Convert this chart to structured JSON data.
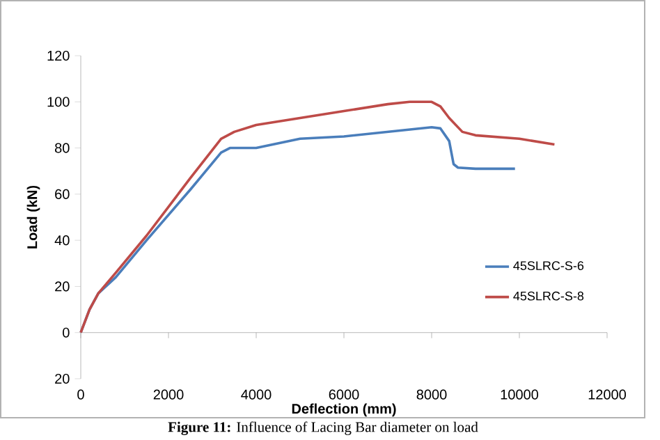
{
  "chart_data": {
    "type": "line",
    "xlabel": "Deflection (mm)",
    "ylabel": "Load (kN)",
    "annotations": [
      "**Figure 11:** Influence of Lacing Bar diameter on load"
    ],
    "xlim": [
      0,
      12000
    ],
    "xticks": [
      0,
      2000,
      4000,
      6000,
      8000,
      10000,
      12000
    ],
    "ylim": [
      -20,
      120
    ],
    "yticks": [
      {
        "value": -20,
        "label": "20"
      },
      0,
      20,
      40,
      60,
      80,
      100,
      120
    ],
    "legend": "right",
    "series": [
      {
        "name": "45SLRC-S-6",
        "color": "#4a7ebb",
        "x": [
          0,
          200,
          400,
          800,
          1500,
          2500,
          3200,
          3400,
          4000,
          4500,
          5000,
          6000,
          7000,
          8000,
          8200,
          8400,
          8500,
          8600,
          9000,
          9900
        ],
        "values": [
          0,
          10,
          17,
          24,
          40,
          62,
          78,
          80,
          80,
          82,
          84,
          85,
          87,
          89,
          88.5,
          83,
          73,
          71.5,
          71,
          71
        ]
      },
      {
        "name": "45SLRC-S-8",
        "color": "#be4b48",
        "x": [
          0,
          200,
          400,
          800,
          1500,
          2500,
          3200,
          3500,
          4000,
          5000,
          6000,
          7000,
          7500,
          8000,
          8200,
          8400,
          8700,
          9000,
          10000,
          10800
        ],
        "values": [
          0,
          10,
          17,
          26,
          42,
          67,
          84,
          87,
          90,
          93,
          96,
          99,
          100,
          100,
          98,
          93,
          87,
          85.5,
          84,
          81.5
        ]
      }
    ]
  }
}
